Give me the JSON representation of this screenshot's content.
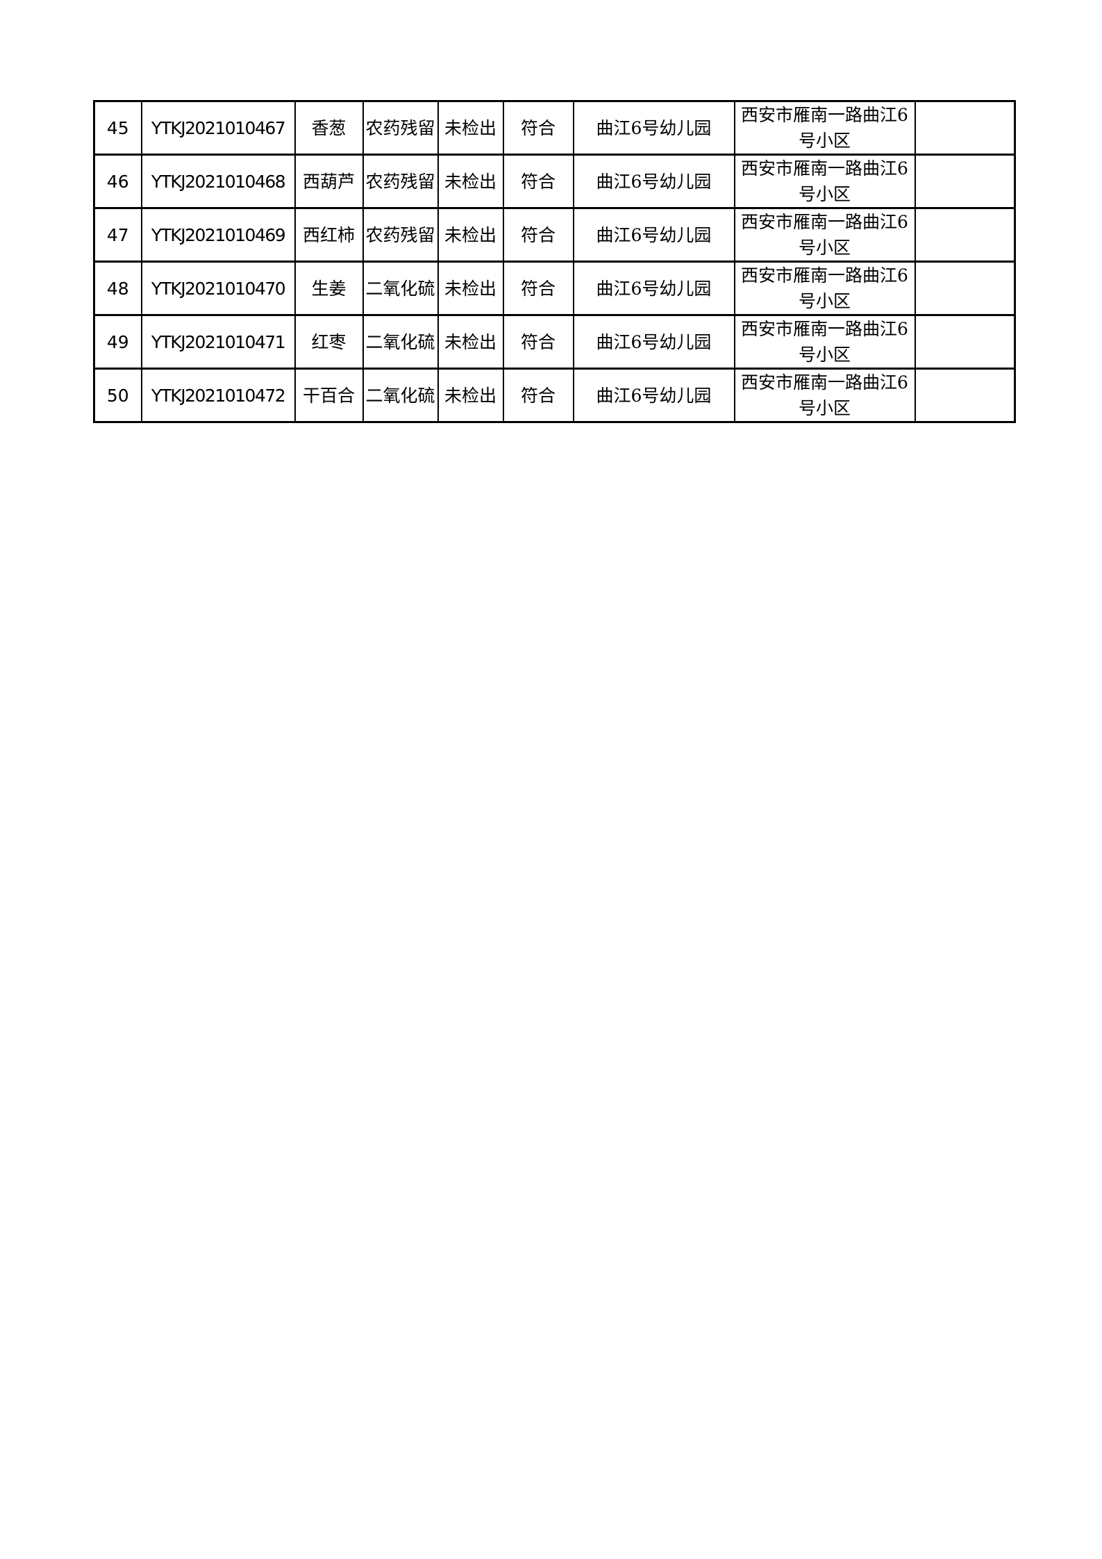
{
  "rows": [
    {
      "no": "45",
      "code": "YTKJ2021010467",
      "sample": "香葱",
      "item": "农药残留",
      "result": "未检出",
      "judgement": "符合",
      "unit": "曲江6号幼儿园",
      "address": "西安市雁南一路曲江6号小区",
      "remark": ""
    },
    {
      "no": "46",
      "code": "YTKJ2021010468",
      "sample": "西葫芦",
      "item": "农药残留",
      "result": "未检出",
      "judgement": "符合",
      "unit": "曲江6号幼儿园",
      "address": "西安市雁南一路曲江6号小区",
      "remark": ""
    },
    {
      "no": "47",
      "code": "YTKJ2021010469",
      "sample": "西红柿",
      "item": "农药残留",
      "result": "未检出",
      "judgement": "符合",
      "unit": "曲江6号幼儿园",
      "address": "西安市雁南一路曲江6号小区",
      "remark": ""
    },
    {
      "no": "48",
      "code": "YTKJ2021010470",
      "sample": "生姜",
      "item": "二氧化硫",
      "result": "未检出",
      "judgement": "符合",
      "unit": "曲江6号幼儿园",
      "address": "西安市雁南一路曲江6号小区",
      "remark": ""
    },
    {
      "no": "49",
      "code": "YTKJ2021010471",
      "sample": "红枣",
      "item": "二氧化硫",
      "result": "未检出",
      "judgement": "符合",
      "unit": "曲江6号幼儿园",
      "address": "西安市雁南一路曲江6号小区",
      "remark": ""
    },
    {
      "no": "50",
      "code": "YTKJ2021010472",
      "sample": "干百合",
      "item": "二氧化硫",
      "result": "未检出",
      "judgement": "符合",
      "unit": "曲江6号幼儿园",
      "address": "西安市雁南一路曲江6号小区",
      "remark": ""
    }
  ]
}
